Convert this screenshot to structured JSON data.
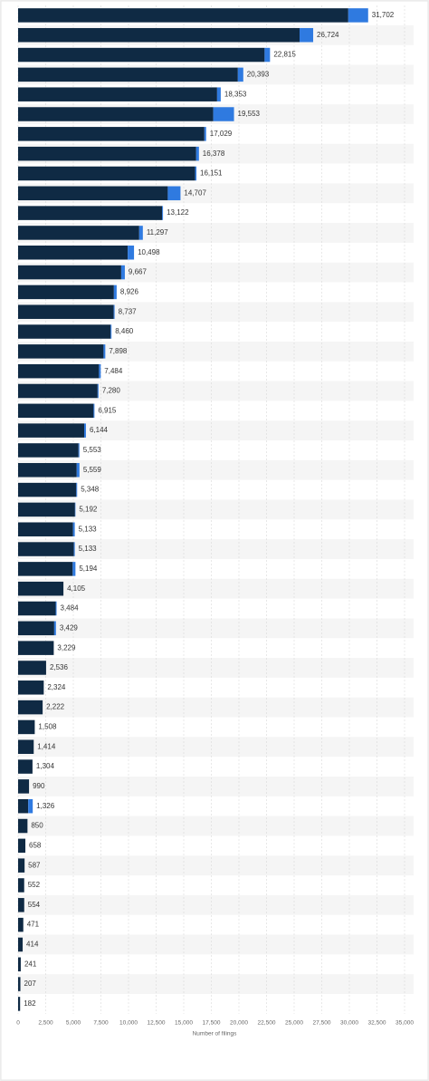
{
  "chart_data": {
    "type": "stacked-barh",
    "categories": [
      null,
      null,
      null,
      null,
      null,
      null,
      null,
      null,
      null,
      null,
      null,
      null,
      null,
      null,
      null,
      null,
      null,
      null,
      null,
      null,
      null,
      null,
      null,
      null,
      null,
      null,
      null,
      null,
      null,
      null,
      null,
      null,
      null,
      null,
      null,
      null,
      null,
      null,
      null,
      null,
      null,
      null,
      null,
      null,
      null,
      null,
      null,
      null,
      null,
      null,
      null
    ],
    "series": [
      {
        "color": "#0f2a44",
        "values": [
          29902,
          25494,
          22325,
          19903,
          18023,
          17673,
          16869,
          16128,
          16031,
          13557,
          13042,
          10967,
          9928,
          9337,
          8676,
          8657,
          8380,
          7738,
          7324,
          7200,
          6835,
          5984,
          5473,
          5309,
          5268,
          5152,
          4973,
          5053,
          4944,
          4105,
          3404,
          3269,
          3229,
          2536,
          2324,
          2222,
          1508,
          1414,
          1304,
          990,
          916,
          850,
          658,
          587,
          552,
          554,
          471,
          414,
          241,
          207,
          182
        ]
      },
      {
        "color": "#2f7ae0",
        "values": [
          1800,
          1230,
          490,
          490,
          330,
          1880,
          160,
          250,
          120,
          1150,
          80,
          330,
          570,
          330,
          250,
          80,
          80,
          160,
          160,
          80,
          80,
          160,
          80,
          250,
          80,
          40,
          160,
          80,
          250,
          0,
          80,
          160,
          0,
          0,
          0,
          0,
          0,
          0,
          0,
          0,
          410,
          0,
          0,
          0,
          0,
          0,
          0,
          0,
          0,
          0,
          0
        ]
      }
    ],
    "totals": [
      31702,
      26724,
      22815,
      20393,
      18353,
      19553,
      17029,
      16378,
      16151,
      14707,
      13122,
      11297,
      10498,
      9667,
      8926,
      8737,
      8460,
      7898,
      7484,
      7280,
      6915,
      6144,
      5553,
      5559,
      5348,
      5192,
      5133,
      5133,
      5194,
      4105,
      3484,
      3429,
      3229,
      2536,
      2324,
      2222,
      1508,
      1414,
      1304,
      990,
      1326,
      850,
      658,
      587,
      552,
      554,
      471,
      414,
      241,
      207,
      182
    ],
    "total_labels": [
      "31,702",
      "26,724",
      "22,815",
      "20,393",
      "18,353",
      "19,553",
      "17,029",
      "16,378",
      "16,151",
      "14,707",
      "13,122",
      "11,297",
      "10,498",
      "9,667",
      "8,926",
      "8,737",
      "8,460",
      "7,898",
      "7,484",
      "7,280",
      "6,915",
      "6,144",
      "5,553",
      "5,559",
      "5,348",
      "5,192",
      "5,133",
      "5,133",
      "5,194",
      "4,105",
      "3,484",
      "3,429",
      "3,229",
      "2,536",
      "2,324",
      "2,222",
      "1,508",
      "1,414",
      "1,304",
      "990",
      "1,326",
      "850",
      "658",
      "587",
      "552",
      "554",
      "471",
      "414",
      "241",
      "207",
      "182"
    ],
    "xlabel": "Number of filings",
    "xlim": [
      0,
      35000
    ],
    "xticks": [
      0,
      {
        "value": 2500,
        "label": "2,500"
      },
      {
        "value": 5000,
        "label": "5,000"
      },
      {
        "value": 7500,
        "label": "7,500"
      },
      {
        "value": 10000,
        "label": "10,000"
      },
      {
        "value": 12500,
        "label": "12,500"
      },
      {
        "value": 15000,
        "label": "15,000"
      },
      {
        "value": 17500,
        "label": "17,500"
      },
      {
        "value": 20000,
        "label": "20,000"
      },
      {
        "value": 22500,
        "label": "22,500"
      },
      {
        "value": 25000,
        "label": "25,000"
      },
      {
        "value": 27500,
        "label": "27,500"
      },
      {
        "value": 30000,
        "label": "30,000"
      },
      {
        "value": 32500,
        "label": "32,500"
      },
      {
        "value": 35000,
        "label": "35,000"
      }
    ],
    "grid": true
  }
}
